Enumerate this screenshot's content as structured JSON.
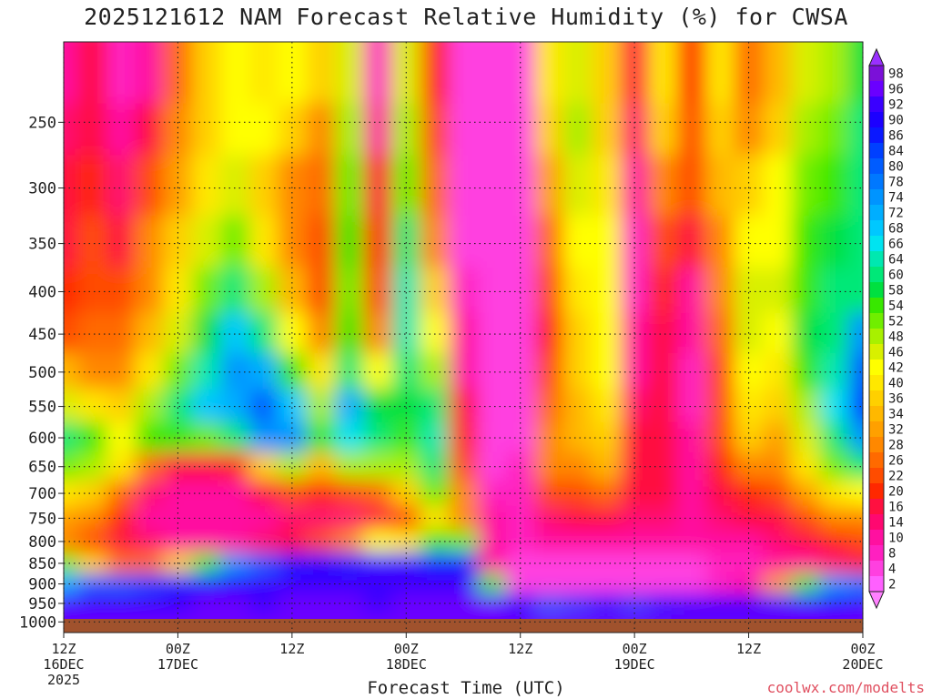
{
  "title": "2025121612 NAM Forecast Relative Humidity (%) for CWSA",
  "credit": "coolwx.com/modelts",
  "chart_data": {
    "type": "heatmap",
    "title": "2025121612 NAM Forecast Relative Humidity (%) for CWSA",
    "xlabel": "Forecast Time (UTC)",
    "ylabel": "",
    "y_scale": "log",
    "ylim": [
      1030,
      200
    ],
    "xlim": [
      0,
      84
    ],
    "y_ticks": [
      250,
      300,
      350,
      400,
      450,
      500,
      550,
      600,
      650,
      700,
      750,
      800,
      850,
      900,
      950,
      1000
    ],
    "x_ticks": [
      {
        "hour": 0,
        "lines": [
          "12Z",
          "16DEC",
          "2025"
        ]
      },
      {
        "hour": 12,
        "lines": [
          "00Z",
          "17DEC"
        ]
      },
      {
        "hour": 24,
        "lines": [
          "12Z"
        ]
      },
      {
        "hour": 36,
        "lines": [
          "00Z",
          "18DEC"
        ]
      },
      {
        "hour": 48,
        "lines": [
          "12Z"
        ]
      },
      {
        "hour": 60,
        "lines": [
          "00Z",
          "19DEC"
        ]
      },
      {
        "hour": 72,
        "lines": [
          "12Z"
        ]
      },
      {
        "hour": 84,
        "lines": [
          "00Z",
          "20DEC"
        ]
      }
    ],
    "grid": true,
    "colorbar": {
      "labels": [
        98,
        96,
        92,
        90,
        86,
        84,
        80,
        78,
        74,
        72,
        68,
        66,
        64,
        60,
        58,
        54,
        52,
        48,
        46,
        42,
        40,
        36,
        34,
        32,
        28,
        26,
        22,
        20,
        16,
        14,
        10,
        8,
        4,
        2
      ],
      "colors": [
        "#7b10d8",
        "#6a00ff",
        "#3a00ff",
        "#1c00ff",
        "#0a18ff",
        "#0040ff",
        "#005cff",
        "#0078ff",
        "#0094ff",
        "#00aeff",
        "#00c8ff",
        "#00e4f0",
        "#00e8b0",
        "#00e878",
        "#00e040",
        "#38e800",
        "#70ee00",
        "#a8f000",
        "#d8f000",
        "#ffff00",
        "#ffe800",
        "#ffd000",
        "#ffb800",
        "#ffa000",
        "#ff8800",
        "#ff6a00",
        "#ff4c00",
        "#ff2800",
        "#ff1040",
        "#ff0870",
        "#ff10a0",
        "#ff20c0",
        "#ff40e0",
        "#ff60ff"
      ]
    },
    "hours": [
      0,
      3,
      6,
      9,
      12,
      15,
      18,
      21,
      24,
      27,
      30,
      33,
      36,
      39,
      42,
      45,
      48,
      51,
      54,
      57,
      60,
      63,
      66,
      69,
      72,
      75,
      78,
      81,
      84
    ],
    "levels": [
      225,
      250,
      300,
      350,
      400,
      450,
      500,
      550,
      600,
      650,
      700,
      750,
      800,
      850,
      900,
      950,
      1000
    ],
    "values": [
      [
        12,
        16,
        8,
        12,
        26,
        36,
        42,
        40,
        42,
        36,
        46,
        8,
        46,
        20,
        4,
        4,
        4,
        40,
        46,
        36,
        16,
        40,
        20,
        40,
        26,
        34,
        46,
        48,
        58
      ],
      [
        14,
        18,
        10,
        16,
        28,
        38,
        44,
        42,
        36,
        30,
        48,
        12,
        48,
        24,
        6,
        4,
        4,
        36,
        48,
        38,
        14,
        38,
        22,
        38,
        30,
        38,
        50,
        52,
        60
      ],
      [
        16,
        20,
        14,
        22,
        32,
        40,
        46,
        38,
        30,
        26,
        52,
        16,
        52,
        26,
        6,
        4,
        4,
        32,
        46,
        40,
        10,
        30,
        24,
        34,
        38,
        42,
        52,
        56,
        62
      ],
      [
        18,
        22,
        18,
        28,
        36,
        46,
        52,
        40,
        28,
        22,
        54,
        20,
        60,
        30,
        6,
        4,
        4,
        26,
        44,
        42,
        8,
        24,
        16,
        30,
        44,
        44,
        54,
        58,
        60
      ],
      [
        20,
        24,
        22,
        30,
        40,
        52,
        60,
        48,
        34,
        24,
        52,
        22,
        64,
        36,
        8,
        4,
        4,
        22,
        40,
        44,
        8,
        20,
        12,
        28,
        46,
        46,
        56,
        60,
        62
      ],
      [
        24,
        26,
        26,
        34,
        46,
        58,
        70,
        60,
        44,
        30,
        56,
        30,
        64,
        42,
        10,
        4,
        4,
        20,
        38,
        44,
        10,
        18,
        10,
        26,
        46,
        44,
        58,
        62,
        74
      ],
      [
        34,
        30,
        30,
        40,
        52,
        64,
        76,
        72,
        56,
        40,
        62,
        42,
        62,
        48,
        12,
        4,
        4,
        22,
        36,
        42,
        12,
        16,
        8,
        24,
        44,
        40,
        54,
        64,
        80
      ],
      [
        46,
        40,
        36,
        48,
        60,
        68,
        72,
        80,
        70,
        50,
        72,
        58,
        58,
        60,
        16,
        4,
        4,
        26,
        34,
        40,
        14,
        16,
        8,
        22,
        40,
        36,
        50,
        66,
        84
      ],
      [
        60,
        54,
        42,
        54,
        56,
        52,
        60,
        74,
        74,
        56,
        66,
        60,
        54,
        64,
        20,
        6,
        6,
        30,
        34,
        38,
        16,
        18,
        10,
        22,
        36,
        32,
        46,
        60,
        74
      ],
      [
        52,
        50,
        40,
        26,
        16,
        16,
        20,
        36,
        50,
        34,
        48,
        50,
        48,
        60,
        24,
        6,
        8,
        30,
        30,
        34,
        18,
        18,
        12,
        20,
        30,
        28,
        40,
        52,
        60
      ],
      [
        40,
        36,
        26,
        14,
        10,
        10,
        12,
        18,
        24,
        20,
        24,
        26,
        36,
        52,
        28,
        8,
        8,
        22,
        24,
        26,
        16,
        16,
        12,
        16,
        20,
        22,
        32,
        40,
        44
      ],
      [
        32,
        28,
        20,
        12,
        10,
        10,
        10,
        12,
        14,
        14,
        14,
        18,
        24,
        40,
        28,
        10,
        8,
        14,
        16,
        16,
        14,
        14,
        12,
        14,
        16,
        18,
        22,
        28,
        30
      ],
      [
        30,
        24,
        18,
        14,
        12,
        12,
        12,
        14,
        18,
        24,
        30,
        44,
        40,
        56,
        52,
        12,
        8,
        10,
        10,
        10,
        10,
        10,
        10,
        12,
        12,
        14,
        16,
        20,
        22
      ],
      [
        52,
        36,
        26,
        26,
        36,
        56,
        74,
        80,
        86,
        90,
        86,
        92,
        92,
        88,
        86,
        10,
        6,
        6,
        6,
        6,
        6,
        6,
        6,
        8,
        8,
        10,
        12,
        14,
        16
      ],
      [
        72,
        80,
        82,
        84,
        86,
        88,
        90,
        92,
        92,
        94,
        92,
        92,
        94,
        94,
        92,
        56,
        6,
        6,
        4,
        4,
        4,
        4,
        6,
        8,
        12,
        32,
        56,
        76,
        78
      ],
      [
        92,
        92,
        94,
        94,
        94,
        96,
        96,
        94,
        96,
        96,
        96,
        94,
        96,
        96,
        96,
        96,
        90,
        82,
        84,
        86,
        84,
        86,
        92,
        92,
        94,
        94,
        92,
        90,
        92
      ],
      [
        96,
        96,
        96,
        96,
        96,
        96,
        96,
        96,
        96,
        96,
        96,
        96,
        96,
        96,
        96,
        96,
        96,
        96,
        96,
        96,
        96,
        96,
        96,
        96,
        96,
        96,
        96,
        96,
        96
      ]
    ]
  },
  "xaxis_label": "Forecast Time (UTC)"
}
